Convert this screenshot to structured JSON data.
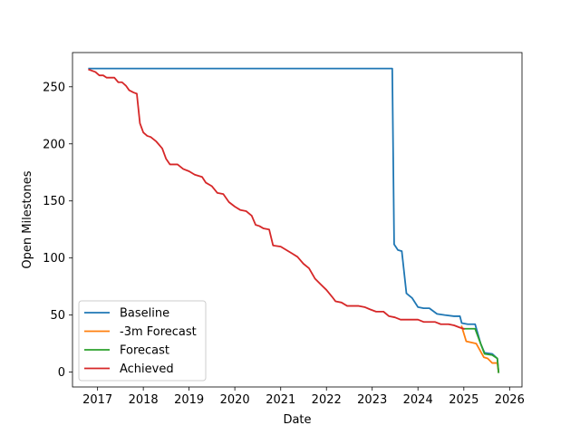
{
  "chart_data": {
    "type": "line",
    "title": "",
    "xlabel": "Date",
    "ylabel": "Open Milestones",
    "x_axis_type": "date",
    "xlim": [
      "2016-06-15",
      "2026-04-10"
    ],
    "ylim": [
      -13,
      280
    ],
    "x_ticks": [
      "2017-01-01",
      "2018-01-01",
      "2019-01-01",
      "2020-01-01",
      "2021-01-01",
      "2022-01-01",
      "2023-01-01",
      "2024-01-01",
      "2025-01-01",
      "2026-01-01"
    ],
    "x_tick_labels": [
      "2017",
      "2018",
      "2019",
      "2020",
      "2021",
      "2022",
      "2023",
      "2024",
      "2025",
      "2026"
    ],
    "y_ticks": [
      0,
      50,
      100,
      150,
      200,
      250
    ],
    "y_tick_labels": [
      "0",
      "50",
      "100",
      "150",
      "200",
      "250"
    ],
    "grid": false,
    "legend_position": "lower-left",
    "series": [
      {
        "name": "Baseline",
        "color": "#1f77b4",
        "points": [
          [
            "2016-10-25",
            266
          ],
          [
            "2023-06-10",
            266
          ],
          [
            "2023-06-25",
            112
          ],
          [
            "2023-07-25",
            107
          ],
          [
            "2023-08-25",
            106
          ],
          [
            "2023-10-01",
            69
          ],
          [
            "2023-11-15",
            65
          ],
          [
            "2024-01-01",
            57
          ],
          [
            "2024-02-15",
            56
          ],
          [
            "2024-04-01",
            56
          ],
          [
            "2024-06-01",
            51
          ],
          [
            "2024-08-01",
            50
          ],
          [
            "2024-10-15",
            49
          ],
          [
            "2024-12-01",
            49
          ],
          [
            "2024-12-15",
            43
          ],
          [
            "2025-02-01",
            42
          ],
          [
            "2025-04-01",
            42
          ],
          [
            "2025-05-15",
            25
          ],
          [
            "2025-06-15",
            17
          ],
          [
            "2025-08-15",
            16
          ],
          [
            "2025-09-25",
            12
          ],
          [
            "2025-10-05",
            0
          ]
        ]
      },
      {
        "name": "-3m Forecast",
        "color": "#ff7f0e",
        "points": [
          [
            "2024-12-15",
            40
          ],
          [
            "2025-01-20",
            27
          ],
          [
            "2025-03-01",
            26
          ],
          [
            "2025-04-10",
            25
          ],
          [
            "2025-06-10",
            13
          ],
          [
            "2025-07-10",
            12
          ],
          [
            "2025-08-15",
            8
          ],
          [
            "2025-09-25",
            8
          ],
          [
            "2025-10-05",
            0
          ]
        ]
      },
      {
        "name": "Forecast",
        "color": "#2ca02c",
        "points": [
          [
            "2025-01-01",
            38
          ],
          [
            "2025-03-01",
            38
          ],
          [
            "2025-04-01",
            38
          ],
          [
            "2025-05-15",
            25
          ],
          [
            "2025-06-15",
            16
          ],
          [
            "2025-08-15",
            15
          ],
          [
            "2025-09-25",
            12
          ],
          [
            "2025-10-05",
            0
          ]
        ]
      },
      {
        "name": "Achieved",
        "color": "#d62728",
        "points": [
          [
            "2016-10-25",
            265
          ],
          [
            "2016-12-15",
            263
          ],
          [
            "2017-01-15",
            260
          ],
          [
            "2017-02-15",
            260
          ],
          [
            "2017-03-15",
            258
          ],
          [
            "2017-04-15",
            258
          ],
          [
            "2017-05-15",
            258
          ],
          [
            "2017-06-15",
            254
          ],
          [
            "2017-07-15",
            254
          ],
          [
            "2017-08-15",
            251
          ],
          [
            "2017-09-10",
            247
          ],
          [
            "2017-10-15",
            245
          ],
          [
            "2017-11-10",
            244
          ],
          [
            "2017-12-05",
            218
          ],
          [
            "2018-01-01",
            210
          ],
          [
            "2018-02-01",
            207
          ],
          [
            "2018-03-01",
            206
          ],
          [
            "2018-04-15",
            202
          ],
          [
            "2018-06-01",
            196
          ],
          [
            "2018-07-01",
            187
          ],
          [
            "2018-08-01",
            182
          ],
          [
            "2018-10-01",
            182
          ],
          [
            "2018-11-15",
            178
          ],
          [
            "2019-01-01",
            176
          ],
          [
            "2019-02-15",
            173
          ],
          [
            "2019-04-15",
            171
          ],
          [
            "2019-05-15",
            166
          ],
          [
            "2019-07-01",
            163
          ],
          [
            "2019-08-15",
            157
          ],
          [
            "2019-10-01",
            156
          ],
          [
            "2019-11-15",
            149
          ],
          [
            "2020-01-01",
            145
          ],
          [
            "2020-02-15",
            142
          ],
          [
            "2020-04-01",
            141
          ],
          [
            "2020-05-15",
            137
          ],
          [
            "2020-06-15",
            129
          ],
          [
            "2020-07-15",
            128
          ],
          [
            "2020-08-15",
            126
          ],
          [
            "2020-10-01",
            125
          ],
          [
            "2020-11-01",
            111
          ],
          [
            "2021-01-01",
            110
          ],
          [
            "2021-02-15",
            107
          ],
          [
            "2021-04-01",
            104
          ],
          [
            "2021-05-15",
            101
          ],
          [
            "2021-07-01",
            95
          ],
          [
            "2021-08-15",
            91
          ],
          [
            "2021-10-01",
            82
          ],
          [
            "2021-11-15",
            77
          ],
          [
            "2022-01-01",
            72
          ],
          [
            "2022-02-15",
            66
          ],
          [
            "2022-03-15",
            62
          ],
          [
            "2022-05-01",
            61
          ],
          [
            "2022-06-15",
            58
          ],
          [
            "2022-08-01",
            58
          ],
          [
            "2022-09-15",
            58
          ],
          [
            "2022-11-01",
            57
          ],
          [
            "2022-12-15",
            55
          ],
          [
            "2023-02-01",
            53
          ],
          [
            "2023-04-01",
            53
          ],
          [
            "2023-05-15",
            49
          ],
          [
            "2023-07-01",
            48
          ],
          [
            "2023-08-15",
            46
          ],
          [
            "2023-10-01",
            46
          ],
          [
            "2023-11-15",
            46
          ],
          [
            "2024-01-01",
            46
          ],
          [
            "2024-02-15",
            44
          ],
          [
            "2024-04-01",
            44
          ],
          [
            "2024-05-15",
            44
          ],
          [
            "2024-07-01",
            42
          ],
          [
            "2024-09-01",
            42
          ],
          [
            "2024-10-15",
            41
          ],
          [
            "2024-12-01",
            39
          ],
          [
            "2025-01-01",
            38
          ]
        ]
      }
    ]
  }
}
